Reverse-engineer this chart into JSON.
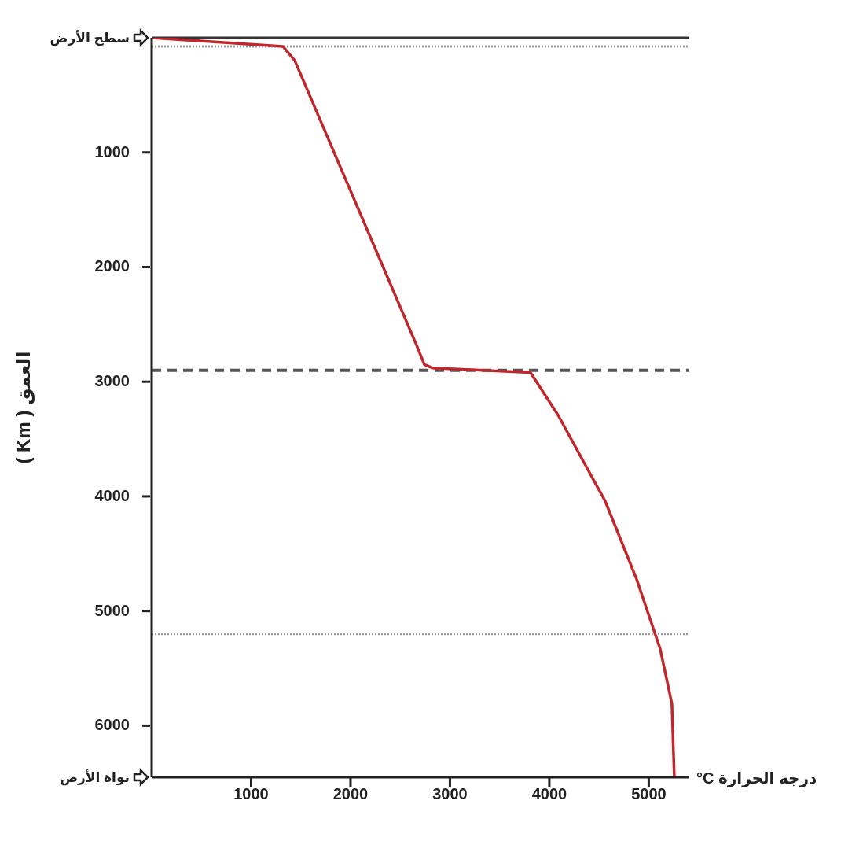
{
  "chart_data": {
    "type": "line",
    "xlabel": "درجة الحرارة C°",
    "ylabel": "العمق ( Km )",
    "series": [
      {
        "color": "#c0272d",
        "x": [
          0,
          1320,
          1440,
          2664,
          2743,
          2822,
          3810,
          4087,
          4561,
          4877,
          5115,
          5233,
          5257
        ],
        "values": [
          0,
          75,
          200,
          2680,
          2850,
          2880,
          2920,
          3290,
          4040,
          4720,
          5330,
          5810,
          6450
        ]
      }
    ],
    "xlim": [
      0,
      5400
    ],
    "xticks": [
      1000,
      2000,
      3000,
      4000,
      5000
    ],
    "ylim": [
      6450,
      0
    ],
    "yticks": [
      {
        "value": 0,
        "label": "سطح الأرض"
      },
      1000,
      2000,
      3000,
      4000,
      5000,
      6000,
      {
        "value": 6450,
        "label": "نواة الأرض"
      }
    ],
    "ref_lines": [
      {
        "axis": "y",
        "value": 0,
        "color": "#333333",
        "line_style": "solid"
      },
      {
        "axis": "y",
        "value": 75,
        "color": "#999999",
        "line_style": "dotted"
      },
      {
        "axis": "y",
        "value": 2900,
        "color": "#555555",
        "line_style": "dashed"
      },
      {
        "axis": "y",
        "value": 5200,
        "color": "#999999",
        "line_style": "dotted"
      }
    ],
    "grid": false,
    "legend": false,
    "marker": "none",
    "line_style": "solid"
  }
}
